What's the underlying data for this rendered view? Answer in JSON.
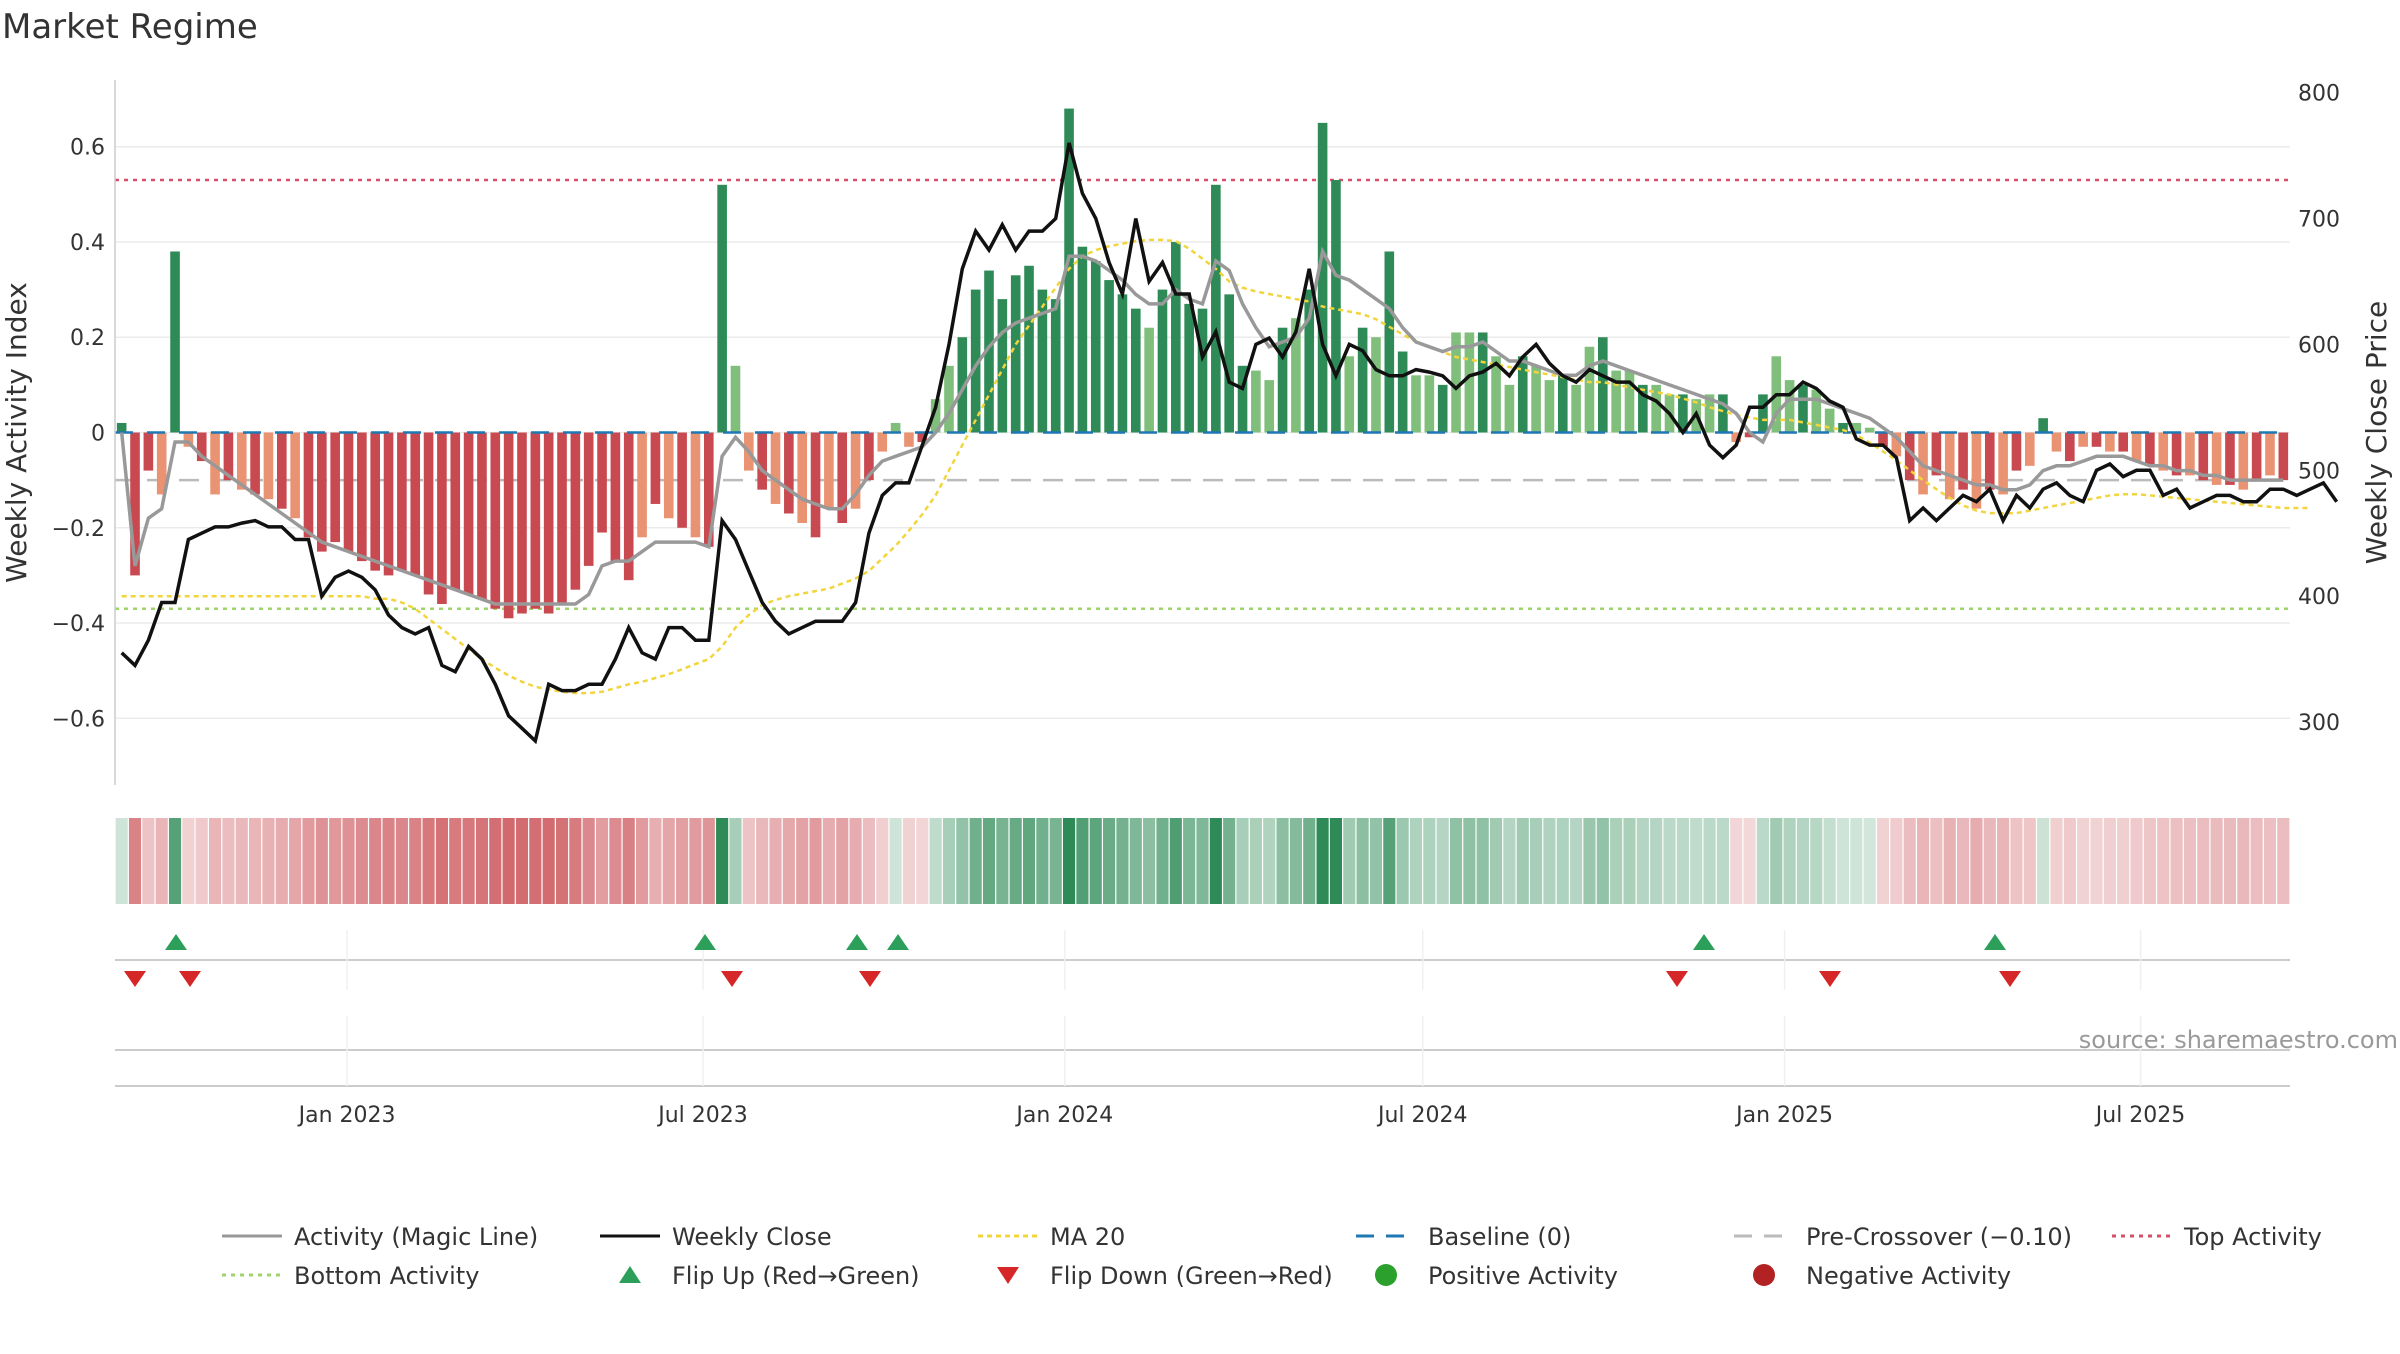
{
  "title": "Market Regime",
  "source": "source: sharemaestro.com",
  "colors": {
    "strong_green": "#2e8b57",
    "light_green": "#7fbf7b",
    "strong_red": "#c8494f",
    "light_red": "#e99373",
    "magic_line": "#999999",
    "close_line": "#111111",
    "ma20": "#f2d53c",
    "baseline": "#1f77b4",
    "pre_crossover": "#bbbbbb",
    "top_activity": "#d6506a",
    "bottom_activity": "#9fd36c",
    "flip_up": "#2ca05a",
    "flip_down": "#d62728",
    "positive_activity": "#2ca02c",
    "negative_activity": "#b22222"
  },
  "chart_data": {
    "type": "bar",
    "title": "Market Regime",
    "x_axis": {
      "type": "date",
      "ticks": [
        "Jan 2023",
        "Jul 2023",
        "Jan 2024",
        "Jul 2024",
        "Jan 2025",
        "Jul 2025"
      ],
      "range": [
        "2022-09-05",
        "2025-09-15"
      ]
    },
    "y_left": {
      "label": "Weekly Activity Index",
      "range": [
        -0.74,
        0.74
      ],
      "ticks": [
        "0.6",
        "0.4",
        "0.2",
        "0",
        "−0.2",
        "−0.4",
        "−0.6"
      ],
      "tick_values": [
        0.6,
        0.4,
        0.2,
        0,
        -0.2,
        -0.4,
        -0.6
      ]
    },
    "y_right": {
      "label": "Weekly Close Price",
      "range": [
        250,
        810
      ],
      "ticks": [
        "800",
        "700",
        "600",
        "500",
        "400",
        "300"
      ],
      "tick_values": [
        800,
        700,
        600,
        500,
        400,
        300
      ]
    },
    "top_activity": 0.53,
    "bottom_activity": -0.37,
    "pre_crossover": -0.1,
    "baseline": 0,
    "activity_bars": [
      0.02,
      -0.3,
      -0.08,
      -0.13,
      0.38,
      -0.03,
      -0.06,
      -0.13,
      -0.1,
      -0.12,
      -0.13,
      -0.14,
      -0.16,
      -0.18,
      -0.22,
      -0.25,
      -0.23,
      -0.25,
      -0.27,
      -0.29,
      -0.3,
      -0.29,
      -0.3,
      -0.34,
      -0.36,
      -0.33,
      -0.34,
      -0.35,
      -0.37,
      -0.39,
      -0.38,
      -0.37,
      -0.38,
      -0.36,
      -0.33,
      -0.28,
      -0.21,
      -0.27,
      -0.31,
      -0.22,
      -0.15,
      -0.18,
      -0.2,
      -0.22,
      -0.24,
      0.52,
      0.14,
      -0.08,
      -0.12,
      -0.15,
      -0.17,
      -0.19,
      -0.22,
      -0.16,
      -0.19,
      -0.16,
      -0.1,
      -0.04,
      0.02,
      -0.03,
      -0.02,
      0.07,
      0.14,
      0.2,
      0.3,
      0.34,
      0.28,
      0.33,
      0.35,
      0.3,
      0.28,
      0.68,
      0.39,
      0.36,
      0.32,
      0.29,
      0.26,
      0.22,
      0.3,
      0.4,
      0.27,
      0.26,
      0.52,
      0.29,
      0.14,
      0.13,
      0.11,
      0.22,
      0.24,
      0.3,
      0.65,
      0.53,
      0.16,
      0.22,
      0.2,
      0.38,
      0.17,
      0.12,
      0.12,
      0.1,
      0.21,
      0.21,
      0.21,
      0.16,
      0.1,
      0.16,
      0.14,
      0.11,
      0.12,
      0.1,
      0.18,
      0.2,
      0.13,
      0.13,
      0.1,
      0.1,
      0.08,
      0.08,
      0.07,
      0.08,
      0.08,
      -0.02,
      -0.01,
      0.08,
      0.16,
      0.11,
      0.1,
      0.09,
      0.05,
      0.02,
      0.02,
      0.01,
      -0.03,
      -0.05,
      -0.1,
      -0.13,
      -0.09,
      -0.14,
      -0.12,
      -0.16,
      -0.12,
      -0.13,
      -0.08,
      -0.07,
      0.03,
      -0.04,
      -0.06,
      -0.03,
      -0.03,
      -0.04,
      -0.04,
      -0.06,
      -0.07,
      -0.08,
      -0.09,
      -0.09,
      -0.1,
      -0.11,
      -0.11,
      -0.12,
      -0.1,
      -0.09,
      -0.1
    ],
    "magic_line": [
      0.0,
      -0.28,
      -0.18,
      -0.16,
      -0.02,
      -0.02,
      -0.05,
      -0.07,
      -0.09,
      -0.11,
      -0.13,
      -0.15,
      -0.17,
      -0.19,
      -0.21,
      -0.23,
      -0.24,
      -0.25,
      -0.26,
      -0.27,
      -0.28,
      -0.29,
      -0.3,
      -0.31,
      -0.32,
      -0.33,
      -0.34,
      -0.35,
      -0.36,
      -0.36,
      -0.36,
      -0.36,
      -0.36,
      -0.36,
      -0.36,
      -0.34,
      -0.28,
      -0.27,
      -0.27,
      -0.25,
      -0.23,
      -0.23,
      -0.23,
      -0.23,
      -0.24,
      -0.05,
      -0.01,
      -0.04,
      -0.08,
      -0.1,
      -0.12,
      -0.14,
      -0.15,
      -0.16,
      -0.16,
      -0.13,
      -0.09,
      -0.06,
      -0.05,
      -0.04,
      -0.03,
      0.0,
      0.04,
      0.09,
      0.14,
      0.18,
      0.21,
      0.23,
      0.24,
      0.25,
      0.26,
      0.37,
      0.37,
      0.36,
      0.34,
      0.32,
      0.29,
      0.27,
      0.27,
      0.3,
      0.28,
      0.27,
      0.36,
      0.34,
      0.27,
      0.22,
      0.18,
      0.19,
      0.2,
      0.24,
      0.38,
      0.33,
      0.32,
      0.3,
      0.28,
      0.26,
      0.22,
      0.19,
      0.18,
      0.17,
      0.18,
      0.18,
      0.19,
      0.17,
      0.15,
      0.15,
      0.14,
      0.13,
      0.12,
      0.12,
      0.14,
      0.15,
      0.14,
      0.13,
      0.12,
      0.11,
      0.1,
      0.09,
      0.08,
      0.07,
      0.06,
      0.04,
      0.0,
      -0.02,
      0.04,
      0.07,
      0.07,
      0.07,
      0.06,
      0.05,
      0.04,
      0.03,
      0.01,
      -0.01,
      -0.04,
      -0.07,
      -0.08,
      -0.09,
      -0.1,
      -0.11,
      -0.11,
      -0.12,
      -0.12,
      -0.11,
      -0.08,
      -0.07,
      -0.07,
      -0.06,
      -0.05,
      -0.05,
      -0.05,
      -0.06,
      -0.07,
      -0.07,
      -0.08,
      -0.08,
      -0.09,
      -0.09,
      -0.1,
      -0.1,
      -0.1,
      -0.1,
      -0.1
    ],
    "weekly_close": [
      355,
      345,
      365,
      395,
      395,
      445,
      450,
      455,
      455,
      458,
      460,
      455,
      455,
      445,
      445,
      400,
      415,
      420,
      415,
      405,
      385,
      375,
      370,
      375,
      345,
      340,
      360,
      350,
      330,
      305,
      295,
      285,
      330,
      325,
      325,
      330,
      330,
      350,
      375,
      355,
      350,
      375,
      375,
      365,
      365,
      460,
      445,
      420,
      395,
      380,
      370,
      375,
      380,
      380,
      380,
      395,
      450,
      480,
      490,
      490,
      520,
      550,
      600,
      660,
      690,
      675,
      695,
      675,
      690,
      690,
      700,
      760,
      720,
      700,
      665,
      640,
      700,
      650,
      665,
      640,
      640,
      590,
      610,
      570,
      565,
      600,
      605,
      590,
      610,
      660,
      600,
      575,
      600,
      595,
      580,
      575,
      575,
      580,
      578,
      575,
      565,
      575,
      578,
      585,
      575,
      590,
      600,
      585,
      575,
      570,
      580,
      575,
      570,
      570,
      560,
      555,
      545,
      530,
      545,
      520,
      510,
      520,
      550,
      550,
      560,
      560,
      570,
      565,
      555,
      550,
      525,
      520,
      520,
      510,
      460,
      470,
      460,
      470,
      480,
      475,
      485,
      460,
      480,
      470,
      485,
      490,
      480,
      475,
      500,
      505,
      495,
      500,
      500,
      480,
      485,
      470,
      475,
      480,
      480,
      475,
      475,
      485,
      485,
      480,
      485,
      490,
      475
    ],
    "ma20": [
      400,
      400,
      400,
      400,
      400,
      400,
      400,
      400,
      400,
      400,
      400,
      400,
      400,
      400,
      400,
      400,
      400,
      400,
      400,
      398,
      398,
      395,
      390,
      382,
      374,
      366,
      358,
      350,
      343,
      337,
      332,
      328,
      326,
      324,
      323,
      323,
      324,
      327,
      330,
      332,
      335,
      338,
      342,
      346,
      350,
      360,
      375,
      385,
      393,
      397,
      400,
      402,
      404,
      406,
      410,
      414,
      420,
      430,
      440,
      452,
      465,
      480,
      500,
      520,
      540,
      560,
      580,
      600,
      615,
      630,
      645,
      660,
      670,
      675,
      678,
      680,
      682,
      683,
      683,
      682,
      676,
      668,
      660,
      650,
      645,
      642,
      640,
      638,
      636,
      634,
      630,
      628,
      626,
      624,
      620,
      614,
      608,
      602,
      598,
      594,
      590,
      588,
      586,
      584,
      582,
      580,
      578,
      576,
      574,
      572,
      570,
      570,
      568,
      566,
      564,
      562,
      560,
      557,
      554,
      550,
      547,
      544,
      542,
      540,
      540,
      540,
      538,
      536,
      534,
      532,
      528,
      522,
      515,
      508,
      500,
      492,
      485,
      478,
      472,
      468,
      466,
      466,
      466,
      468,
      470,
      472,
      474,
      476,
      478,
      480,
      481,
      481,
      480,
      479,
      478,
      477,
      476,
      475,
      474,
      473,
      472,
      471,
      470,
      470,
      470
    ],
    "regime_strip": "Weekly regime heat strip (green = positive activity, red = negative activity)",
    "flip_up": [
      "2022-10",
      "2023-07",
      "2023-10",
      "2023-11",
      "2024-12",
      "2025-05"
    ],
    "flip_down": [
      "2022-09",
      "2022-10",
      "2023-07",
      "2023-10",
      "2024-11",
      "2025-02",
      "2025-05"
    ],
    "legend": {
      "placement": "bottom",
      "entries": [
        {
          "label": "Activity (Magic Line)"
        },
        {
          "label": "Weekly Close"
        },
        {
          "label": "MA 20"
        },
        {
          "label": "Baseline (0)"
        },
        {
          "label": "Pre-Crossover (−0.10)"
        },
        {
          "label": "Top Activity"
        },
        {
          "label": "Bottom Activity"
        },
        {
          "label": "Flip Up (Red→Green)"
        },
        {
          "label": "Flip Down (Green→Red)"
        },
        {
          "label": "Positive Activity"
        },
        {
          "label": "Negative Activity"
        }
      ]
    },
    "grid": true
  }
}
